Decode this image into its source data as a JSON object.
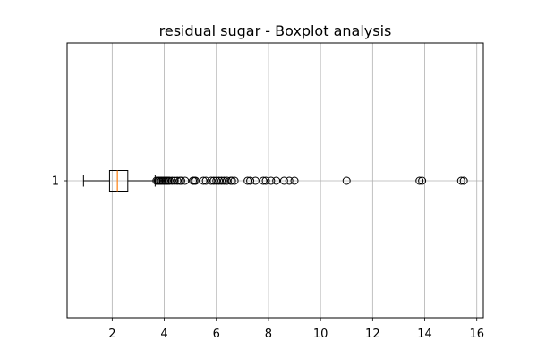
{
  "chart_data": {
    "type": "boxplot",
    "title": "residual sugar - Boxplot analysis",
    "xlabel": "",
    "ylabel": "",
    "orientation": "horizontal",
    "xlim": [
      0.27,
      16.25
    ],
    "xticks": [
      2,
      4,
      6,
      8,
      10,
      12,
      14,
      16
    ],
    "y_category_labels": [
      "1"
    ],
    "grid": true,
    "box": {
      "whisker_low": 0.9,
      "q1": 1.9,
      "median": 2.2,
      "q3": 2.6,
      "whisker_high": 3.65
    },
    "outliers": [
      3.7,
      3.75,
      3.8,
      3.85,
      3.9,
      3.95,
      4.0,
      4.05,
      4.1,
      4.15,
      4.2,
      4.3,
      4.4,
      4.5,
      4.6,
      4.65,
      4.8,
      5.1,
      5.15,
      5.2,
      5.5,
      5.6,
      5.8,
      5.9,
      6.0,
      6.1,
      6.2,
      6.3,
      6.4,
      6.55,
      6.6,
      6.7,
      7.2,
      7.3,
      7.5,
      7.8,
      7.9,
      8.1,
      8.3,
      8.6,
      8.8,
      9.0,
      11.0,
      13.8,
      13.9,
      15.4,
      15.5
    ],
    "colors": {
      "box": "#000000",
      "median": "#ff7f0e",
      "grid": "#b0b0b0",
      "outlier_edge": "#000000"
    }
  }
}
